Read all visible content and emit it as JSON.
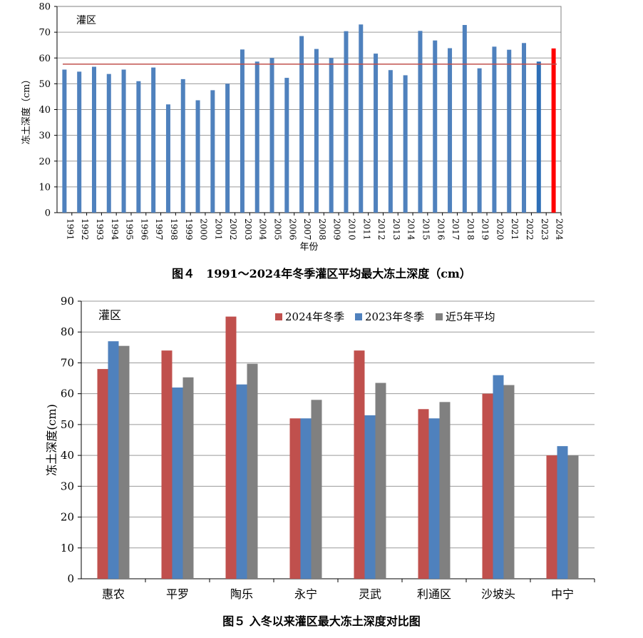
{
  "chart_data": [
    {
      "type": "bar",
      "title": "图４　1991～2024年冬季灌区平均最大冻土深度（cm）",
      "annotation": "灌区",
      "xlabel": "年份",
      "ylabel": "冻土深度（cm）",
      "ylim": [
        0,
        80
      ],
      "yticks": [
        0,
        10,
        20,
        30,
        40,
        50,
        60,
        70,
        80
      ],
      "grid": true,
      "categories": [
        "1991",
        "1992",
        "1993",
        "1994",
        "1995",
        "1996",
        "1997",
        "1998",
        "1999",
        "2000",
        "2001",
        "2002",
        "2003",
        "2004",
        "2005",
        "2006",
        "2007",
        "2008",
        "2009",
        "2010",
        "2011",
        "2012",
        "2013",
        "2014",
        "2015",
        "2016",
        "2017",
        "2018",
        "2019",
        "2020",
        "2021",
        "2022",
        "2023",
        "2024"
      ],
      "values": [
        55.5,
        54.7,
        56.6,
        53.8,
        55.5,
        51.0,
        56.3,
        42.0,
        51.8,
        43.6,
        47.5,
        50.0,
        63.3,
        58.6,
        60.0,
        52.3,
        68.5,
        63.5,
        60.0,
        70.4,
        73.0,
        61.7,
        55.3,
        53.3,
        70.5,
        66.8,
        63.8,
        72.8,
        56.0,
        64.4,
        63.2,
        65.8,
        58.6,
        63.7
      ],
      "reference_line": 57.6,
      "colors": {
        "bar": "#4f81bd",
        "bar_2023": "#2e6fb7",
        "bar_2024": "#ff0000",
        "reference": "#c0504d",
        "grid": "#9a9a9a"
      }
    },
    {
      "type": "bar",
      "title": "图５ 入冬以来灌区最大冻土深度对比图",
      "annotation": "灌区",
      "xlabel": "",
      "ylabel": "冻土深度(cm)",
      "ylim": [
        0,
        90
      ],
      "yticks": [
        0,
        10,
        20,
        30,
        40,
        50,
        60,
        70,
        80,
        90
      ],
      "grid": true,
      "legend_position": "top-right",
      "categories": [
        "惠农",
        "平罗",
        "陶乐",
        "永宁",
        "灵武",
        "利通区",
        "沙坡头",
        "中宁"
      ],
      "series": [
        {
          "name": "2024年冬季",
          "color": "#c0504d",
          "values": [
            68,
            74,
            85,
            52,
            74,
            55,
            60,
            40
          ]
        },
        {
          "name": "2023年冬季",
          "color": "#4f81bd",
          "values": [
            77,
            62,
            63,
            52,
            53,
            52,
            66,
            43
          ]
        },
        {
          "name": "近5年平均",
          "color": "#808080",
          "values": [
            75.5,
            65.3,
            69.7,
            58.0,
            63.5,
            57.3,
            62.8,
            40.0
          ]
        }
      ],
      "colors": {
        "grid": "#9a9a9a"
      }
    }
  ]
}
